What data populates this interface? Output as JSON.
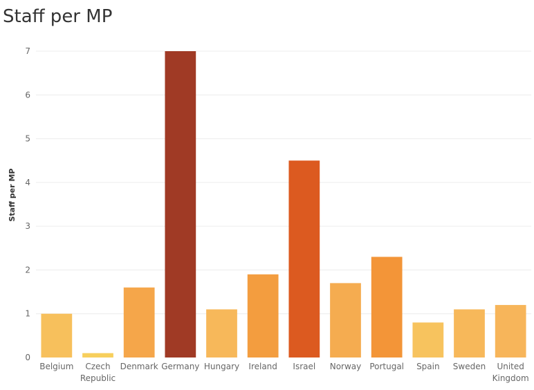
{
  "title": "Staff per MP",
  "chart_data": {
    "type": "bar",
    "title": "Staff per MP",
    "xlabel": "",
    "ylabel": "Staff per MP",
    "categories": [
      "Belgium",
      "Czech Republic",
      "Denmark",
      "Germany",
      "Hungary",
      "Ireland",
      "Israel",
      "Norway",
      "Portugal",
      "Spain",
      "Sweden",
      "United Kingdom"
    ],
    "category_lines": [
      [
        "Belgium"
      ],
      [
        "Czech",
        "Republic"
      ],
      [
        "Denmark"
      ],
      [
        "Germany"
      ],
      [
        "Hungary"
      ],
      [
        "Ireland"
      ],
      [
        "Israel"
      ],
      [
        "Norway"
      ],
      [
        "Portugal"
      ],
      [
        "Spain"
      ],
      [
        "Sweden"
      ],
      [
        "United",
        "Kingdom"
      ]
    ],
    "values": [
      1.0,
      0.1,
      1.6,
      7.0,
      1.1,
      1.9,
      4.5,
      1.7,
      2.3,
      0.8,
      1.1,
      1.2
    ],
    "colors": [
      "#f7c05c",
      "#f7cf5d",
      "#f5a64a",
      "#a03a25",
      "#f7b85a",
      "#f39d3f",
      "#dc5a20",
      "#f5ac50",
      "#f39538",
      "#f7c35e",
      "#f7b85a",
      "#f7b55a"
    ],
    "ylim": [
      0,
      7
    ],
    "yticks": [
      0,
      1,
      2,
      3,
      4,
      5,
      6,
      7
    ],
    "grid": true,
    "legend": "none"
  }
}
